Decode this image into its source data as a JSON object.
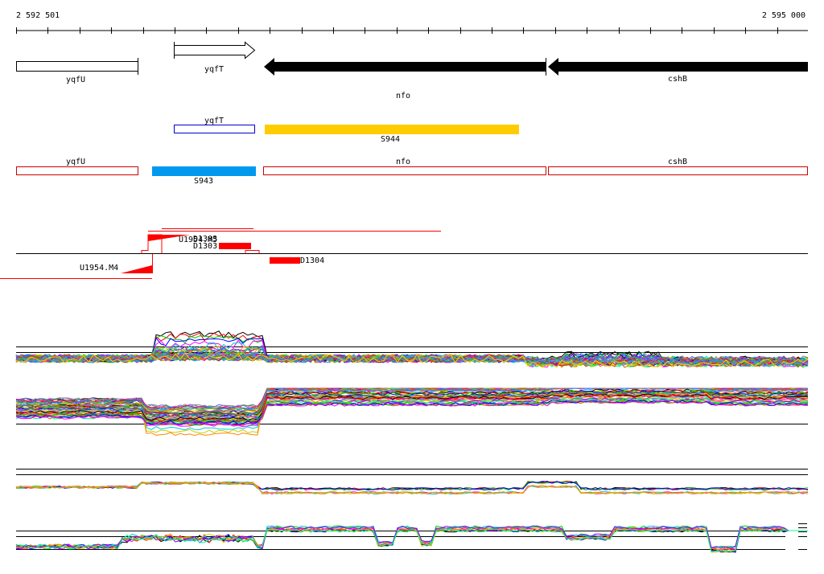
{
  "coordinates": {
    "start": "2 592 501",
    "end": "2 595 000"
  },
  "colors": {
    "segment_yellow": "#ffcc00",
    "segment_blue": "#0099ee",
    "feature_red": "#ff0000",
    "outline_blue": "#0000cc",
    "outline_red": "#cc0000",
    "black": "#000000"
  },
  "genes_track": {
    "yqfU": "yqfU",
    "yqfT": "yqfT",
    "nfo": "nfo",
    "cshB": "cshB"
  },
  "segments_track": {
    "yqfT": "yqfT",
    "S944": "S944",
    "S943": "S943"
  },
  "operon_track": {
    "yqfU": "yqfU",
    "nfo": "nfo",
    "cshB": "cshB"
  },
  "features_track": {
    "U1954_M5": "U1954.M5",
    "U1954_M4": "U1954.M4",
    "D1303": "D1303",
    "D1304": "D1304",
    "D1303_overlap": "D1303"
  },
  "expression_palette": [
    "#000000",
    "#ff0000",
    "#00cc00",
    "#0000ff",
    "#ff00ff",
    "#00cccc",
    "#cccc00",
    "#ff8800",
    "#8800ff",
    "#00ff88",
    "#888888",
    "#ff0088",
    "#0088ff",
    "#88cc00",
    "#cc6600",
    "#6666ff",
    "#33aa33",
    "#aa3333",
    "#3399ff",
    "#ffcc00"
  ]
}
